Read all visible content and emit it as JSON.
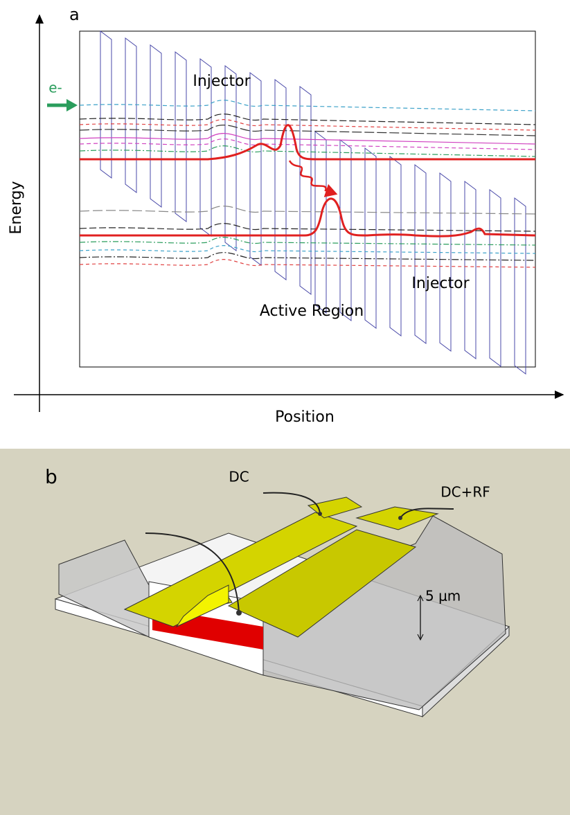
{
  "panel_a": {
    "label": "a",
    "y_axis_label": "Energy",
    "x_axis_label": "Position",
    "electron_label": "e-",
    "injector_top": "Injector",
    "injector_bottom": "Injector",
    "active_region": "Active Region"
  },
  "panel_b": {
    "label": "b",
    "contact_dc": "DC",
    "contact_dc_rf": "DC+RF",
    "scale_label": "5 μm"
  }
}
